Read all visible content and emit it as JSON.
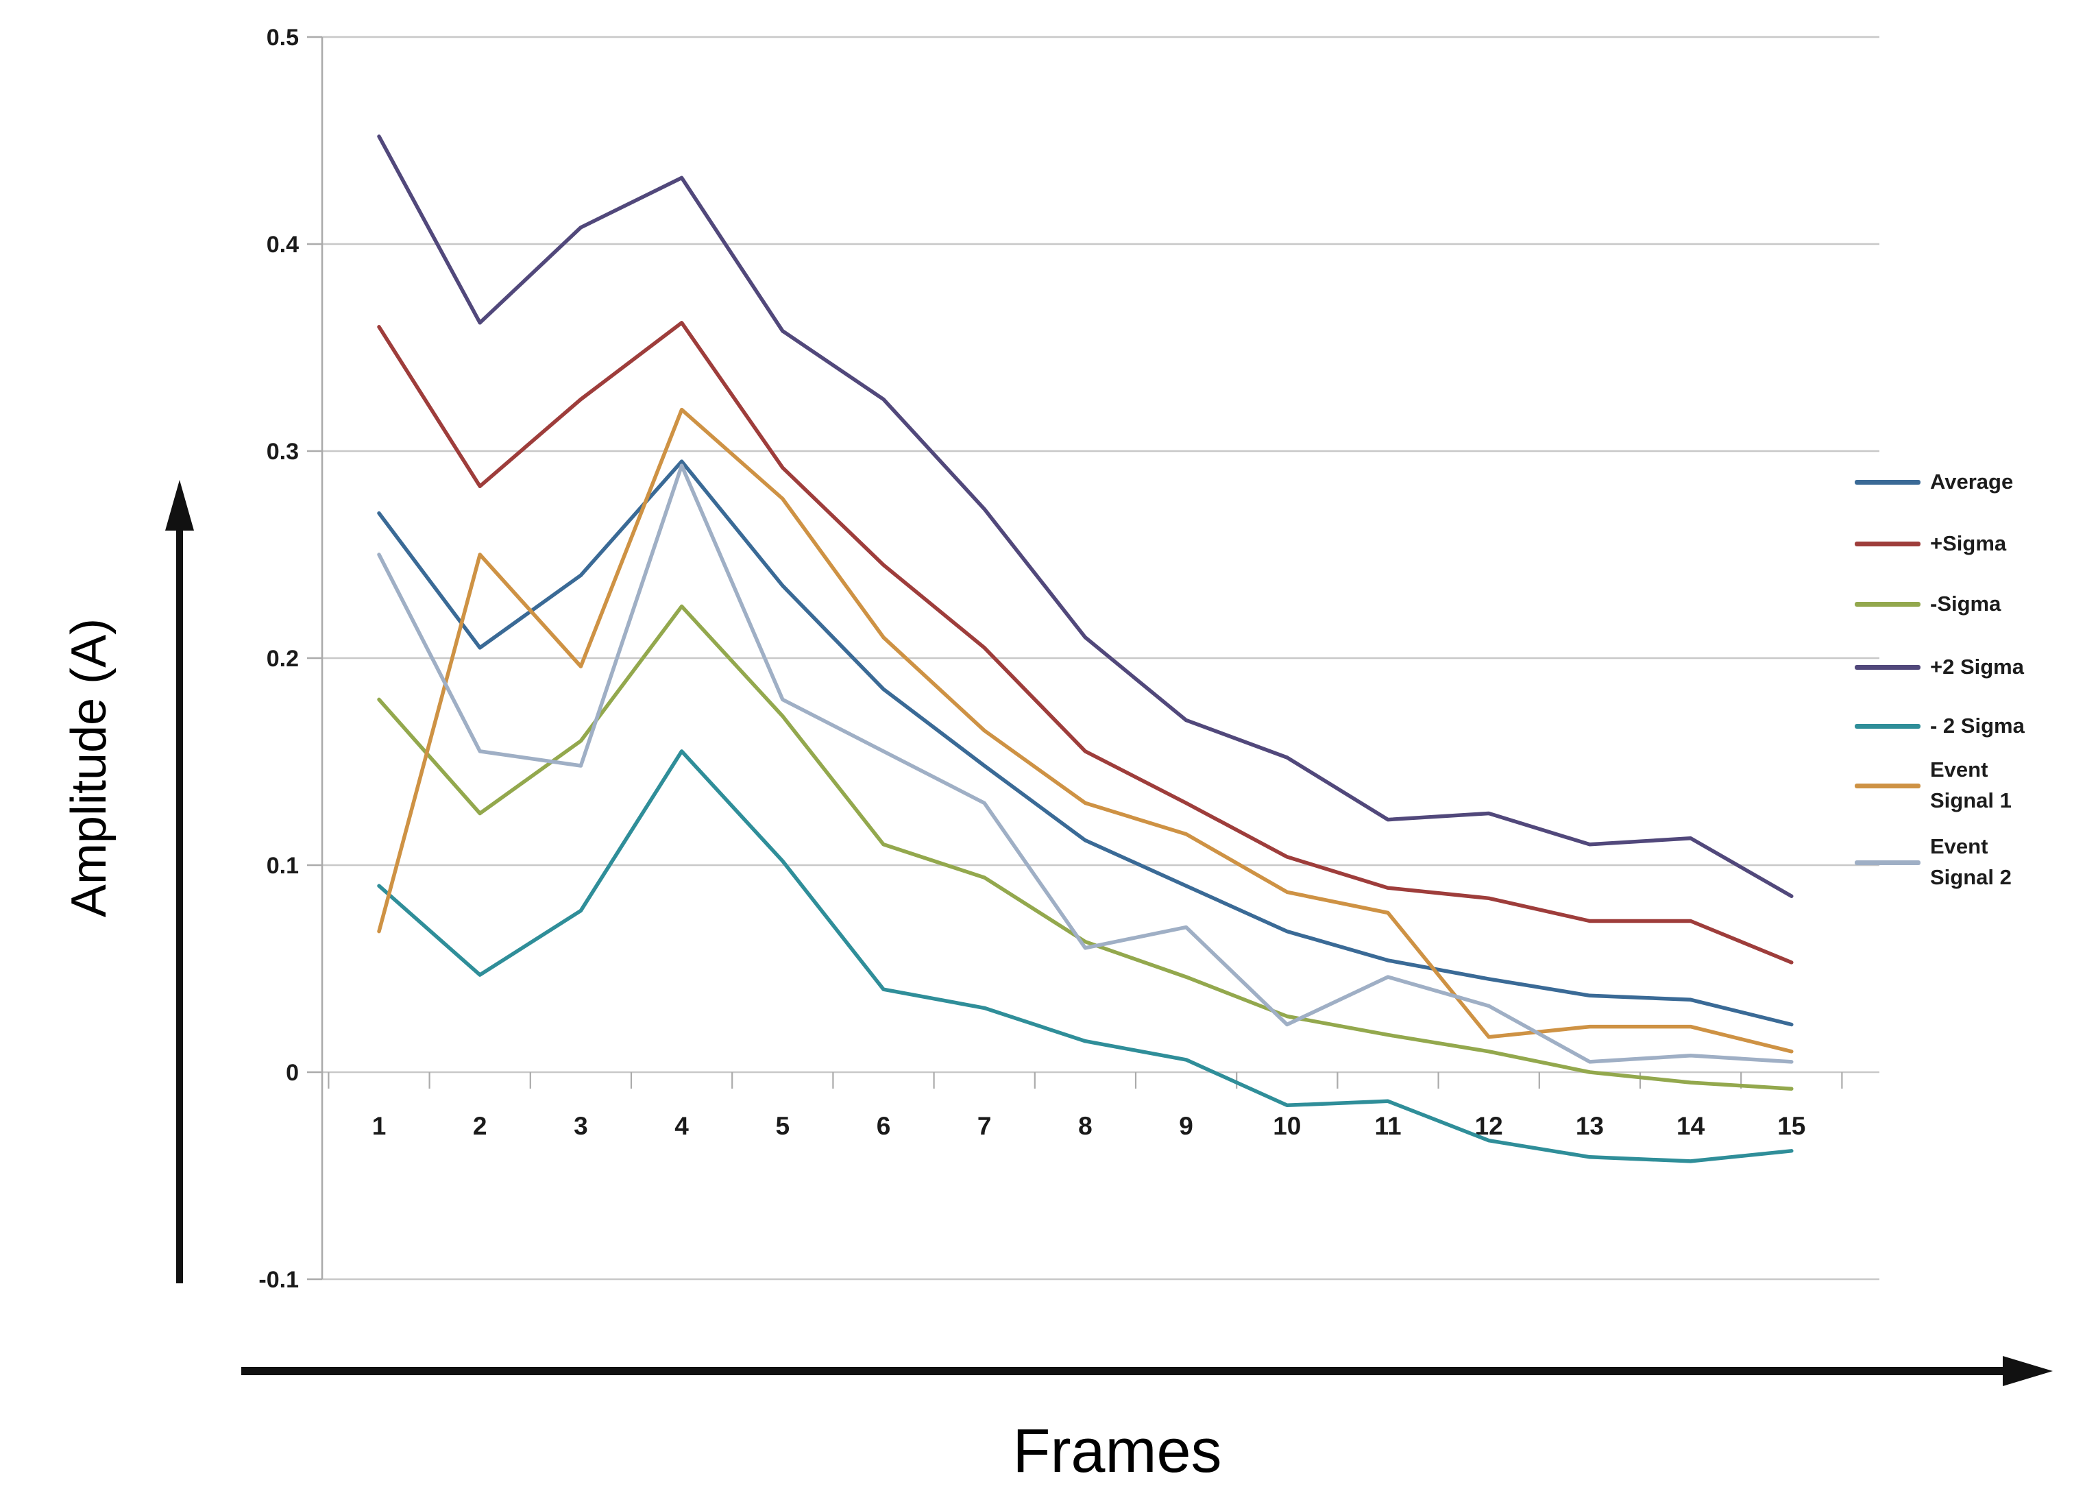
{
  "chart_data": {
    "type": "line",
    "title": "",
    "xlabel": "Frames",
    "ylabel": "Amplitude (A)",
    "x_categories": [
      "1",
      "2",
      "3",
      "4",
      "5",
      "6",
      "7",
      "8",
      "9",
      "10",
      "11",
      "12",
      "13",
      "14",
      "15"
    ],
    "y_ticks": [
      {
        "label": "0.5",
        "value": 0.5
      },
      {
        "label": "0.4",
        "value": 0.4
      },
      {
        "label": "0.3",
        "value": 0.3
      },
      {
        "label": "0.2",
        "value": 0.2
      },
      {
        "label": "0.1",
        "value": 0.1
      },
      {
        "label": "0",
        "value": 0.0
      },
      {
        "label": "-0.1",
        "value": -0.1
      }
    ],
    "ylim": [
      -0.1,
      0.5
    ],
    "grid": "horizontal",
    "legend_position": "right",
    "colors": {
      "gridline": "#c8c8c8",
      "axis": "#ababab",
      "tick_text": "#1a1a1a",
      "arrow": "#111111"
    },
    "series": [
      {
        "name": "Average",
        "color": "#3A6A96",
        "values": [
          0.27,
          0.205,
          0.24,
          0.295,
          0.235,
          0.185,
          0.148,
          0.112,
          0.09,
          0.068,
          0.054,
          0.045,
          0.037,
          0.035,
          0.023
        ]
      },
      {
        "name": "+Sigma",
        "color": "#9E3D3B",
        "values": [
          0.36,
          0.283,
          0.325,
          0.362,
          0.292,
          0.245,
          0.205,
          0.155,
          0.13,
          0.104,
          0.089,
          0.084,
          0.073,
          0.073,
          0.053
        ]
      },
      {
        "name": "-Sigma",
        "color": "#93A84D",
        "values": [
          0.18,
          0.125,
          0.16,
          0.225,
          0.172,
          0.11,
          0.094,
          0.063,
          0.046,
          0.027,
          0.018,
          0.01,
          0.0,
          -0.005,
          -0.008
        ]
      },
      {
        "name": "+2 Sigma",
        "color": "#51487B",
        "values": [
          0.452,
          0.362,
          0.408,
          0.432,
          0.358,
          0.325,
          0.272,
          0.21,
          0.17,
          0.152,
          0.122,
          0.125,
          0.11,
          0.113,
          0.085
        ]
      },
      {
        "name": "- 2 Sigma",
        "color": "#2F8E99",
        "values": [
          0.09,
          0.047,
          0.078,
          0.155,
          0.102,
          0.04,
          0.031,
          0.015,
          0.006,
          -0.016,
          -0.014,
          -0.033,
          -0.041,
          -0.043,
          -0.038
        ]
      },
      {
        "name": "Event Signal 1",
        "color": "#CE9244",
        "values": [
          0.068,
          0.25,
          0.196,
          0.32,
          0.277,
          0.21,
          0.165,
          0.13,
          0.115,
          0.087,
          0.077,
          0.017,
          0.022,
          0.022,
          0.01
        ]
      },
      {
        "name": "Event Signal 2",
        "color": "#9FAFC5",
        "values": [
          0.25,
          0.155,
          0.148,
          0.293,
          0.18,
          0.155,
          0.13,
          0.06,
          0.07,
          0.023,
          0.046,
          0.032,
          0.005,
          0.008,
          0.005
        ]
      }
    ]
  }
}
